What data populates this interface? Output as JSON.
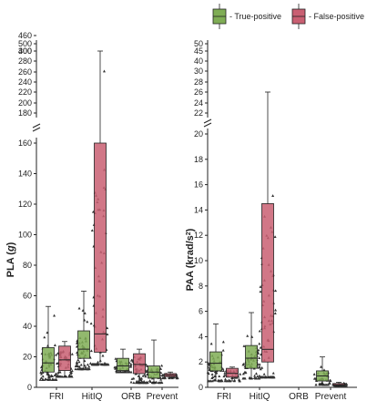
{
  "legend": {
    "placement": "top-right",
    "items": [
      {
        "label": "- True-positive",
        "color": "#7fad55"
      },
      {
        "label": "- False-positive",
        "color": "#c95f72"
      }
    ]
  },
  "chart_data": [
    {
      "type": "box",
      "ylabel": "PLA (g)",
      "ylabel_prefix": "PLA (",
      "ylabel_unit": "g",
      "ylabel_suffix": ")",
      "scale": "broken",
      "lower_range": [
        0,
        160
      ],
      "upper_range": [
        180,
        500
      ],
      "lower_ticks": [
        0,
        20,
        40,
        60,
        80,
        100,
        120,
        140,
        160
      ],
      "upper_ticks": [
        180,
        200,
        220,
        240,
        260,
        280,
        300,
        400,
        460,
        500
      ],
      "categories": [
        "FRI",
        "HitIQ",
        "ORB",
        "Prevent"
      ],
      "series": [
        {
          "name": "True-positive",
          "boxes": [
            {
              "min": 5,
              "q1": 10,
              "median": 16,
              "q3": 26,
              "max": 53
            },
            {
              "min": 12,
              "q1": 19,
              "median": 25,
              "q3": 37,
              "max": 63
            },
            {
              "min": 10,
              "q1": 11,
              "median": 14,
              "q3": 19,
              "max": 25
            },
            {
              "min": 3,
              "q1": 6,
              "median": 10,
              "q3": 14,
              "max": 31
            }
          ]
        },
        {
          "name": "False-positive",
          "boxes": [
            {
              "min": 7,
              "q1": 11,
              "median": 18,
              "q3": 27,
              "max": 30
            },
            {
              "min": 15,
              "q1": 23,
              "median": 35,
              "q3": 160,
              "max": 300
            },
            {
              "min": 3,
              "q1": 9,
              "median": 15,
              "q3": 22,
              "max": 25
            },
            {
              "min": 6,
              "q1": 7,
              "median": 8,
              "q3": 9,
              "max": 10
            }
          ]
        }
      ]
    },
    {
      "type": "box",
      "ylabel": "PAA (krad/s²)",
      "ylabel_prefix": "PAA (krad/s",
      "ylabel_unit": "2",
      "ylabel_suffix": ")",
      "scale": "broken",
      "lower_range": [
        0,
        20
      ],
      "upper_range": [
        20,
        50
      ],
      "lower_ticks": [
        0,
        2,
        4,
        6,
        8,
        10,
        12,
        14,
        16,
        18,
        20
      ],
      "upper_ticks": [
        22,
        24,
        26,
        28,
        30,
        40,
        45,
        50
      ],
      "categories": [
        "FRI",
        "HitIQ",
        "ORB",
        "Prevent"
      ],
      "series": [
        {
          "name": "True-positive",
          "boxes": [
            {
              "min": 0.5,
              "q1": 1.3,
              "median": 1.9,
              "q3": 2.8,
              "max": 5.0
            },
            {
              "min": 0.7,
              "q1": 1.5,
              "median": 2.3,
              "q3": 3.3,
              "max": 5.9
            },
            null,
            {
              "min": 0.2,
              "q1": 0.5,
              "median": 0.9,
              "q3": 1.3,
              "max": 2.4
            }
          ]
        },
        {
          "name": "False-positive",
          "boxes": [
            {
              "min": 0.5,
              "q1": 0.8,
              "median": 1.1,
              "q3": 1.5,
              "max": 1.6
            },
            {
              "min": 0.8,
              "q1": 2.0,
              "median": 3.0,
              "q3": 14.5,
              "max": 26
            },
            null,
            {
              "min": 0.1,
              "q1": 0.15,
              "median": 0.2,
              "q3": 0.3,
              "max": 0.4
            }
          ]
        }
      ]
    }
  ]
}
